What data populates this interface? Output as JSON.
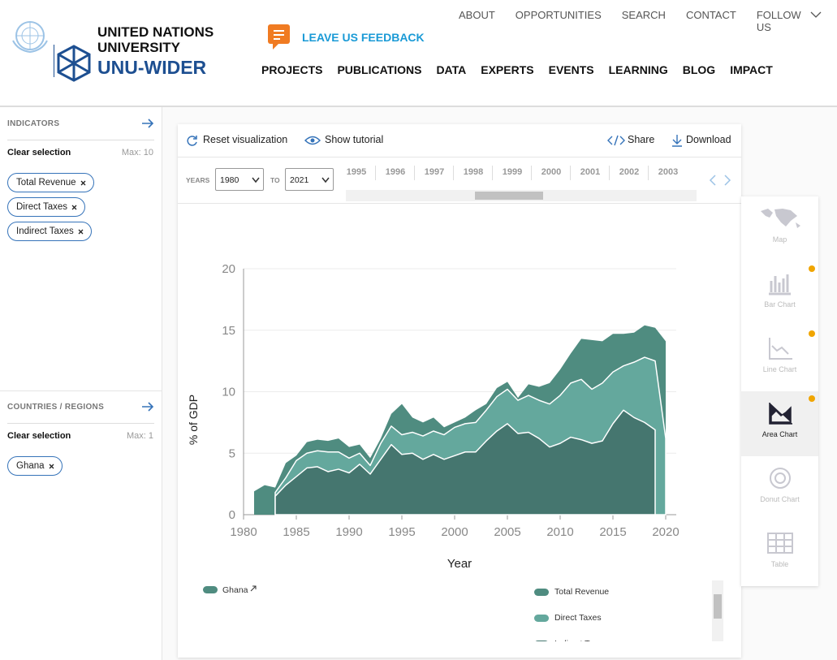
{
  "header": {
    "org": [
      "UNITED NATIONS",
      "UNIVERSITY"
    ],
    "brand": "UNU-WIDER",
    "feedback": "LEAVE US FEEDBACK",
    "top_nav": [
      "ABOUT",
      "OPPORTUNITIES",
      "SEARCH",
      "CONTACT",
      "FOLLOW US"
    ],
    "main_nav": [
      "PROJECTS",
      "PUBLICATIONS",
      "DATA",
      "EXPERTS",
      "EVENTS",
      "LEARNING",
      "BLOG",
      "IMPACT"
    ]
  },
  "sidebar": {
    "indicators": {
      "title": "INDICATORS",
      "clear": "Clear selection",
      "max": "Max: 10",
      "tags": [
        "Total Revenue",
        "Direct Taxes",
        "Indirect Taxes"
      ]
    },
    "countries": {
      "title": "COUNTRIES / REGIONS",
      "clear": "Clear selection",
      "max": "Max: 1",
      "tags": [
        "Ghana"
      ]
    }
  },
  "toolbar": {
    "reset": "Reset visualization",
    "tutorial": "Show tutorial",
    "share": "Share",
    "download": "Download"
  },
  "range": {
    "years_label": "YEARS",
    "from": "1980",
    "to_label": "TO",
    "to": "2021",
    "strip": [
      "1995",
      "1996",
      "1997",
      "1998",
      "1999",
      "2000",
      "2001",
      "2002",
      "2003"
    ]
  },
  "chart_types": [
    "Map",
    "Bar Chart",
    "Line Chart",
    "Area Chart",
    "Donut Chart",
    "Table"
  ],
  "active_chart_type": "Area Chart",
  "chart_data": {
    "type": "area",
    "country": "Ghana",
    "xlabel": "Year",
    "ylabel": "% of GDP",
    "x": [
      1981,
      1982,
      1983,
      1984,
      1985,
      1986,
      1987,
      1988,
      1989,
      1990,
      1991,
      1992,
      1993,
      1994,
      1995,
      1996,
      1997,
      1998,
      1999,
      2000,
      2001,
      2002,
      2003,
      2004,
      2005,
      2006,
      2007,
      2008,
      2009,
      2010,
      2011,
      2012,
      2013,
      2014,
      2015,
      2016,
      2017,
      2018,
      2019,
      2020
    ],
    "series": [
      {
        "name": "Total Revenue",
        "color": "#4f8c80",
        "values": [
          1.9,
          2.4,
          2.2,
          4.2,
          4.8,
          5.9,
          6.1,
          6.0,
          6.2,
          5.5,
          5.7,
          4.6,
          6.2,
          8.2,
          9.0,
          7.9,
          7.5,
          7.9,
          7.1,
          7.5,
          7.9,
          8.5,
          9.0,
          10.3,
          10.8,
          9.5,
          10.6,
          10.4,
          10.7,
          11.8,
          13.1,
          14.3,
          14.2,
          14.1,
          14.7,
          14.7,
          14.8,
          15.4,
          15.2,
          14.1
        ]
      },
      {
        "name": "Direct Taxes",
        "color": "#64a89d",
        "values": [
          null,
          null,
          1.8,
          3.0,
          4.4,
          5.0,
          5.2,
          5.1,
          5.1,
          4.6,
          5.0,
          4.0,
          5.8,
          7.2,
          6.5,
          6.7,
          6.4,
          6.8,
          6.5,
          7.1,
          7.4,
          7.5,
          8.5,
          9.6,
          10.2,
          9.3,
          9.7,
          9.3,
          9.0,
          9.7,
          10.7,
          11.0,
          10.2,
          10.7,
          11.6,
          12.1,
          12.4,
          12.8,
          12.5,
          6.2
        ]
      },
      {
        "name": "Indirect Taxes",
        "color": "#45766f",
        "values": [
          null,
          null,
          1.5,
          2.4,
          3.1,
          3.8,
          3.9,
          3.5,
          3.7,
          3.4,
          4.1,
          3.3,
          4.5,
          5.7,
          4.9,
          5.0,
          4.5,
          4.9,
          4.5,
          4.8,
          5.1,
          5.1,
          6.0,
          6.8,
          7.4,
          6.6,
          6.7,
          6.2,
          5.5,
          5.8,
          6.3,
          6.1,
          5.8,
          6.0,
          7.4,
          8.5,
          7.9,
          7.5,
          6.9,
          null
        ]
      }
    ],
    "xlim": [
      1980,
      2020
    ],
    "xticks": [
      1980,
      1985,
      1990,
      1995,
      2000,
      2005,
      2010,
      2015,
      2020
    ],
    "ylim": [
      0,
      20
    ],
    "yticks": [
      0,
      5,
      10,
      15,
      20
    ],
    "grid": true
  }
}
